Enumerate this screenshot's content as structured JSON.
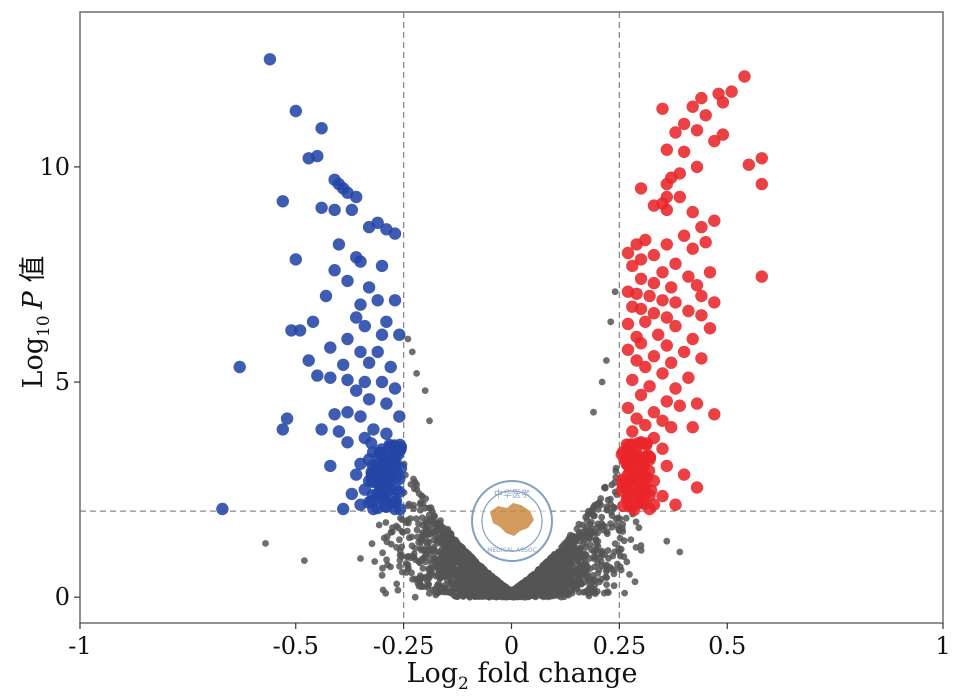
{
  "chart_data": {
    "type": "scatter",
    "title": "",
    "xlabel_main": "Log",
    "xlabel_sub": "2",
    "xlabel_rest": " fold change",
    "ylabel_main": "Log",
    "ylabel_sub": "10",
    "ylabel_p": "P",
    "ylabel_rest": " 值",
    "xlim": [
      -1.0,
      1.0
    ],
    "ylim": [
      -0.6,
      13.6
    ],
    "x_ticks": [
      {
        "value": -1,
        "label": "-1"
      },
      {
        "value": -0.5,
        "label": "-0.5"
      },
      {
        "value": -0.25,
        "label": "-0.25"
      },
      {
        "value": 0,
        "label": "0"
      },
      {
        "value": 0.25,
        "label": "0.25"
      },
      {
        "value": 0.5,
        "label": "0.5"
      },
      {
        "value": 1,
        "label": "1"
      }
    ],
    "y_ticks": [
      {
        "value": 0,
        "label": "0"
      },
      {
        "value": 5,
        "label": "5"
      },
      {
        "value": 10,
        "label": "10"
      }
    ],
    "thresholds": {
      "x": [
        -0.25,
        0.25
      ],
      "y": 2.0
    },
    "legend": "none",
    "grid": false,
    "colors": {
      "down": "#2346a6",
      "up": "#e8252a",
      "ns": "#555555",
      "threshold": "#8a8a8a",
      "frame": "#6f6f6f"
    },
    "series": [
      {
        "name": "down",
        "points": [
          [
            -0.56,
            12.5
          ],
          [
            -0.5,
            11.3
          ],
          [
            -0.44,
            10.9
          ],
          [
            -0.47,
            10.2
          ],
          [
            -0.45,
            10.25
          ],
          [
            -0.41,
            9.7
          ],
          [
            -0.4,
            9.6
          ],
          [
            -0.39,
            9.5
          ],
          [
            -0.38,
            9.4
          ],
          [
            -0.36,
            9.3
          ],
          [
            -0.53,
            9.2
          ],
          [
            -0.44,
            9.05
          ],
          [
            -0.41,
            9.0
          ],
          [
            -0.37,
            9.0
          ],
          [
            -0.31,
            8.7
          ],
          [
            -0.33,
            8.6
          ],
          [
            -0.29,
            8.55
          ],
          [
            -0.27,
            8.45
          ],
          [
            -0.4,
            8.2
          ],
          [
            -0.36,
            7.9
          ],
          [
            -0.35,
            7.8
          ],
          [
            -0.5,
            7.85
          ],
          [
            -0.3,
            7.7
          ],
          [
            -0.41,
            7.6
          ],
          [
            -0.38,
            7.35
          ],
          [
            -0.33,
            7.2
          ],
          [
            -0.43,
            7.0
          ],
          [
            -0.31,
            6.9
          ],
          [
            -0.27,
            6.9
          ],
          [
            -0.35,
            6.8
          ],
          [
            -0.36,
            6.5
          ],
          [
            -0.46,
            6.4
          ],
          [
            -0.34,
            6.3
          ],
          [
            -0.29,
            6.4
          ],
          [
            -0.51,
            6.2
          ],
          [
            -0.49,
            6.2
          ],
          [
            -0.38,
            6.0
          ],
          [
            -0.3,
            6.1
          ],
          [
            -0.26,
            6.1
          ],
          [
            -0.42,
            5.8
          ],
          [
            -0.35,
            5.7
          ],
          [
            -0.31,
            5.7
          ],
          [
            -0.47,
            5.5
          ],
          [
            -0.39,
            5.4
          ],
          [
            -0.33,
            5.45
          ],
          [
            -0.28,
            5.35
          ],
          [
            -0.63,
            5.35
          ],
          [
            -0.45,
            5.15
          ],
          [
            -0.42,
            5.1
          ],
          [
            -0.38,
            5.05
          ],
          [
            -0.34,
            5.0
          ],
          [
            -0.3,
            5.0
          ],
          [
            -0.27,
            4.85
          ],
          [
            -0.36,
            4.8
          ],
          [
            -0.33,
            4.6
          ],
          [
            -0.29,
            4.5
          ],
          [
            -0.38,
            4.3
          ],
          [
            -0.41,
            4.25
          ],
          [
            -0.35,
            4.2
          ],
          [
            -0.26,
            4.2
          ],
          [
            -0.52,
            4.15
          ],
          [
            -0.44,
            3.9
          ],
          [
            -0.4,
            3.85
          ],
          [
            -0.32,
            3.9
          ],
          [
            -0.29,
            3.8
          ],
          [
            -0.53,
            3.9
          ],
          [
            -0.34,
            3.7
          ],
          [
            -0.38,
            3.6
          ],
          [
            -0.28,
            3.5
          ],
          [
            -0.3,
            3.35
          ],
          [
            -0.33,
            3.2
          ],
          [
            -0.35,
            3.1
          ],
          [
            -0.42,
            3.05
          ],
          [
            -0.27,
            3.05
          ],
          [
            -0.31,
            2.95
          ],
          [
            -0.36,
            2.85
          ],
          [
            -0.29,
            2.8
          ],
          [
            -0.33,
            2.7
          ],
          [
            -0.26,
            2.75
          ],
          [
            -0.3,
            2.65
          ],
          [
            -0.34,
            2.5
          ],
          [
            -0.28,
            2.5
          ],
          [
            -0.31,
            2.4
          ],
          [
            -0.37,
            2.4
          ],
          [
            -0.26,
            2.45
          ],
          [
            -0.3,
            2.3
          ],
          [
            -0.33,
            2.2
          ],
          [
            -0.27,
            2.2
          ],
          [
            -0.35,
            2.15
          ],
          [
            -0.29,
            2.1
          ],
          [
            -0.39,
            2.05
          ],
          [
            -0.67,
            2.05
          ],
          [
            -0.32,
            2.05
          ],
          [
            -0.27,
            2.05
          ]
        ]
      },
      {
        "name": "up",
        "points": [
          [
            0.54,
            12.1
          ],
          [
            0.51,
            11.75
          ],
          [
            0.48,
            11.7
          ],
          [
            0.44,
            11.6
          ],
          [
            0.49,
            11.5
          ],
          [
            0.42,
            11.4
          ],
          [
            0.35,
            11.35
          ],
          [
            0.45,
            11.2
          ],
          [
            0.4,
            11.0
          ],
          [
            0.43,
            10.85
          ],
          [
            0.38,
            10.8
          ],
          [
            0.49,
            10.75
          ],
          [
            0.47,
            10.6
          ],
          [
            0.36,
            10.4
          ],
          [
            0.4,
            10.35
          ],
          [
            0.58,
            10.2
          ],
          [
            0.55,
            10.05
          ],
          [
            0.43,
            10.0
          ],
          [
            0.39,
            9.85
          ],
          [
            0.37,
            9.75
          ],
          [
            0.36,
            9.6
          ],
          [
            0.3,
            9.5
          ],
          [
            0.58,
            9.6
          ],
          [
            0.36,
            9.3
          ],
          [
            0.39,
            9.3
          ],
          [
            0.35,
            9.15
          ],
          [
            0.33,
            9.1
          ],
          [
            0.36,
            9.0
          ],
          [
            0.42,
            8.95
          ],
          [
            0.44,
            8.6
          ],
          [
            0.47,
            8.75
          ],
          [
            0.4,
            8.4
          ],
          [
            0.31,
            8.3
          ],
          [
            0.29,
            8.2
          ],
          [
            0.36,
            8.2
          ],
          [
            0.42,
            8.1
          ],
          [
            0.45,
            8.25
          ],
          [
            0.27,
            8.0
          ],
          [
            0.33,
            7.95
          ],
          [
            0.3,
            7.85
          ],
          [
            0.38,
            7.75
          ],
          [
            0.28,
            7.7
          ],
          [
            0.35,
            7.55
          ],
          [
            0.46,
            7.55
          ],
          [
            0.41,
            7.45
          ],
          [
            0.58,
            7.45
          ],
          [
            0.3,
            7.4
          ],
          [
            0.33,
            7.3
          ],
          [
            0.37,
            7.2
          ],
          [
            0.43,
            7.25
          ],
          [
            0.27,
            7.1
          ],
          [
            0.29,
            7.05
          ],
          [
            0.32,
            7.0
          ],
          [
            0.44,
            7.0
          ],
          [
            0.35,
            6.9
          ],
          [
            0.38,
            6.85
          ],
          [
            0.47,
            6.85
          ],
          [
            0.28,
            6.75
          ],
          [
            0.3,
            6.7
          ],
          [
            0.33,
            6.6
          ],
          [
            0.41,
            6.65
          ],
          [
            0.36,
            6.5
          ],
          [
            0.44,
            6.55
          ],
          [
            0.31,
            6.4
          ],
          [
            0.27,
            6.35
          ],
          [
            0.38,
            6.3
          ],
          [
            0.46,
            6.25
          ],
          [
            0.34,
            6.1
          ],
          [
            0.29,
            6.05
          ],
          [
            0.42,
            6.0
          ],
          [
            0.3,
            5.9
          ],
          [
            0.36,
            5.85
          ],
          [
            0.4,
            5.7
          ],
          [
            0.27,
            5.75
          ],
          [
            0.33,
            5.6
          ],
          [
            0.44,
            5.55
          ],
          [
            0.29,
            5.5
          ],
          [
            0.37,
            5.45
          ],
          [
            0.31,
            5.35
          ],
          [
            0.35,
            5.2
          ],
          [
            0.41,
            5.1
          ],
          [
            0.28,
            5.05
          ],
          [
            0.32,
            4.9
          ],
          [
            0.38,
            4.85
          ],
          [
            0.3,
            4.7
          ],
          [
            0.36,
            4.55
          ],
          [
            0.43,
            4.5
          ],
          [
            0.39,
            4.45
          ],
          [
            0.27,
            4.4
          ],
          [
            0.33,
            4.3
          ],
          [
            0.47,
            4.25
          ],
          [
            0.29,
            4.15
          ],
          [
            0.35,
            4.1
          ],
          [
            0.31,
            4.0
          ],
          [
            0.37,
            3.95
          ],
          [
            0.42,
            3.95
          ],
          [
            0.28,
            3.85
          ],
          [
            0.33,
            3.7
          ],
          [
            0.3,
            3.6
          ],
          [
            0.27,
            3.5
          ],
          [
            0.35,
            3.45
          ],
          [
            0.29,
            3.3
          ],
          [
            0.32,
            3.2
          ],
          [
            0.27,
            3.1
          ],
          [
            0.36,
            3.05
          ],
          [
            0.3,
            2.95
          ],
          [
            0.4,
            2.85
          ],
          [
            0.28,
            2.8
          ],
          [
            0.33,
            2.7
          ],
          [
            0.27,
            2.6
          ],
          [
            0.43,
            2.55
          ],
          [
            0.31,
            2.5
          ],
          [
            0.29,
            2.4
          ],
          [
            0.35,
            2.35
          ],
          [
            0.27,
            2.3
          ],
          [
            0.3,
            2.2
          ],
          [
            0.33,
            2.15
          ],
          [
            0.38,
            2.15
          ],
          [
            0.28,
            2.1
          ],
          [
            0.32,
            2.05
          ]
        ]
      },
      {
        "name": "ns",
        "generator": "V-shaped cloud: points with |log2 fold change| < 0.25 or log10 P < 2, roughly y = 0.2 + 18*|x| * u, u in [0,1], plus dense cluster near origin",
        "count": 2600,
        "seed": 7,
        "points": [
          [
            -0.57,
            1.25
          ],
          [
            -0.48,
            0.85
          ],
          [
            -0.35,
            0.9
          ],
          [
            -0.24,
            0.75
          ],
          [
            -0.2,
            0.95
          ],
          [
            0.2,
            0.8
          ],
          [
            0.3,
            1.2
          ],
          [
            0.36,
            1.3
          ],
          [
            0.39,
            1.05
          ],
          [
            0.2,
            0.55
          ],
          [
            -0.24,
            6.0
          ],
          [
            -0.23,
            5.7
          ],
          [
            -0.22,
            5.2
          ],
          [
            0.24,
            7.1
          ],
          [
            0.23,
            6.4
          ],
          [
            0.22,
            5.5
          ],
          [
            0.21,
            5.0
          ],
          [
            -0.2,
            4.8
          ],
          [
            -0.19,
            4.1
          ],
          [
            0.19,
            4.3
          ]
        ]
      }
    ]
  },
  "watermark": {
    "top_text": "中华医学",
    "bottom_text": "MEDICAL ASSOC",
    "colors": {
      "ring": "#6f8fb3",
      "map": "#cc8a42"
    }
  }
}
